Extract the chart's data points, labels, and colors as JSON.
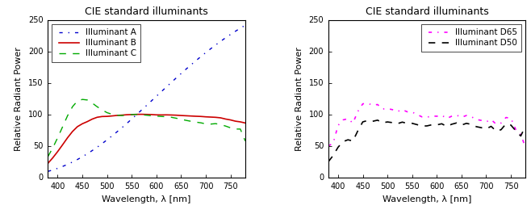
{
  "title": "CIE standard illuminants",
  "xlabel": "Wavelength, λ [nm]",
  "ylabel": "Relative Radiant Power",
  "xlim": [
    380,
    780
  ],
  "ylim": [
    0,
    250
  ],
  "xticks": [
    400,
    450,
    500,
    550,
    600,
    650,
    700,
    750
  ],
  "yticks": [
    0,
    50,
    100,
    150,
    200,
    250
  ],
  "illuminant_A": {
    "wavelengths": [
      380,
      390,
      400,
      410,
      420,
      430,
      440,
      450,
      460,
      470,
      480,
      490,
      500,
      510,
      520,
      530,
      540,
      550,
      560,
      570,
      580,
      590,
      600,
      610,
      620,
      630,
      640,
      650,
      660,
      670,
      680,
      690,
      700,
      710,
      720,
      730,
      740,
      750,
      760,
      770,
      780
    ],
    "values": [
      9.8,
      12.1,
      14.7,
      17.7,
      21.0,
      24.7,
      28.7,
      33.1,
      37.8,
      42.9,
      48.2,
      53.9,
      59.9,
      66.1,
      72.5,
      79.1,
      85.9,
      92.9,
      100.0,
      107.2,
      114.4,
      121.7,
      129.0,
      136.3,
      143.6,
      150.8,
      158.0,
      165.0,
      172.0,
      178.8,
      185.4,
      191.9,
      198.3,
      204.4,
      210.4,
      216.1,
      221.7,
      227.0,
      232.1,
      237.0,
      241.7
    ],
    "color": "#0000cc",
    "linestyle": "-.",
    "label": "Illuminant A",
    "linewidth": 1.0
  },
  "illuminant_B": {
    "wavelengths": [
      380,
      390,
      400,
      410,
      420,
      430,
      440,
      450,
      460,
      470,
      480,
      490,
      500,
      510,
      520,
      530,
      540,
      550,
      560,
      570,
      580,
      590,
      600,
      610,
      620,
      630,
      640,
      650,
      660,
      670,
      680,
      690,
      700,
      710,
      720,
      730,
      740,
      750,
      760,
      770,
      780
    ],
    "values": [
      22.4,
      31.3,
      41.3,
      52.1,
      63.2,
      73.1,
      80.8,
      85.4,
      88.8,
      92.8,
      95.7,
      96.9,
      97.1,
      97.8,
      98.6,
      99.1,
      99.7,
      100.0,
      100.3,
      100.4,
      100.2,
      100.0,
      99.5,
      99.4,
      99.5,
      99.3,
      99.0,
      98.5,
      98.1,
      97.7,
      97.3,
      97.0,
      96.4,
      96.0,
      95.6,
      94.8,
      92.9,
      91.5,
      89.5,
      88.4,
      86.6
    ],
    "color": "#cc0000",
    "linestyle": "-",
    "label": "Illuminant B",
    "linewidth": 1.2
  },
  "illuminant_C": {
    "wavelengths": [
      380,
      390,
      400,
      410,
      420,
      430,
      440,
      450,
      460,
      470,
      480,
      490,
      500,
      510,
      520,
      530,
      540,
      550,
      560,
      570,
      580,
      590,
      600,
      610,
      620,
      630,
      640,
      650,
      660,
      670,
      680,
      690,
      700,
      710,
      720,
      730,
      740,
      750,
      760,
      770,
      780
    ],
    "values": [
      33.0,
      47.0,
      63.3,
      80.6,
      98.1,
      112.4,
      121.5,
      124.0,
      123.1,
      118.2,
      112.4,
      107.4,
      103.0,
      100.5,
      99.0,
      98.4,
      99.3,
      100.0,
      100.2,
      99.7,
      99.0,
      98.1,
      97.5,
      97.0,
      96.6,
      95.7,
      94.2,
      92.5,
      90.8,
      89.3,
      88.0,
      86.9,
      85.2,
      84.9,
      85.6,
      84.0,
      81.8,
      79.0,
      77.0,
      77.0,
      58.0
    ],
    "color": "#00aa00",
    "linestyle": "--",
    "label": "Illuminant C",
    "linewidth": 1.0
  },
  "illuminant_D65": {
    "wavelengths": [
      380,
      390,
      400,
      410,
      420,
      430,
      440,
      450,
      460,
      470,
      480,
      490,
      500,
      510,
      520,
      530,
      540,
      550,
      560,
      570,
      580,
      590,
      600,
      610,
      620,
      630,
      640,
      650,
      660,
      670,
      680,
      690,
      700,
      710,
      720,
      730,
      740,
      750,
      760,
      770,
      780
    ],
    "values": [
      50.0,
      54.6,
      82.8,
      91.5,
      93.4,
      86.5,
      104.9,
      117.0,
      117.8,
      114.9,
      115.9,
      108.8,
      109.4,
      107.8,
      104.8,
      107.7,
      104.4,
      104.0,
      100.0,
      96.3,
      95.8,
      97.7,
      97.3,
      98.9,
      93.8,
      97.3,
      99.0,
      95.7,
      98.5,
      96.5,
      92.3,
      90.7,
      88.5,
      92.0,
      84.9,
      86.5,
      95.3,
      94.3,
      76.0,
      68.3,
      47.0
    ],
    "color": "#ff00ff",
    "linestyle": "-.",
    "label": "Illuminant D65",
    "linewidth": 1.2
  },
  "illuminant_D50": {
    "wavelengths": [
      380,
      390,
      400,
      410,
      420,
      430,
      440,
      450,
      460,
      470,
      480,
      490,
      500,
      510,
      520,
      530,
      540,
      550,
      560,
      570,
      580,
      590,
      600,
      610,
      620,
      630,
      640,
      650,
      660,
      670,
      680,
      690,
      700,
      710,
      720,
      730,
      740,
      750,
      760,
      770,
      780
    ],
    "values": [
      24.9,
      35.1,
      48.2,
      57.0,
      60.0,
      58.0,
      74.2,
      88.4,
      90.5,
      89.3,
      91.1,
      86.9,
      88.3,
      87.2,
      85.5,
      88.0,
      86.0,
      86.1,
      84.0,
      81.8,
      82.0,
      83.8,
      83.6,
      85.4,
      81.1,
      84.6,
      86.7,
      83.3,
      86.1,
      84.3,
      80.8,
      79.2,
      77.3,
      81.3,
      73.9,
      75.9,
      85.2,
      83.3,
      74.2,
      66.0,
      82.5
    ],
    "color": "#000000",
    "linestyle": "--",
    "label": "Illuminant D50",
    "linewidth": 1.2
  },
  "bg_color": "#ffffff",
  "axes_bg_color": "#ffffff",
  "tick_fontsize": 7,
  "label_fontsize": 8,
  "title_fontsize": 9,
  "legend_fontsize": 7.5
}
